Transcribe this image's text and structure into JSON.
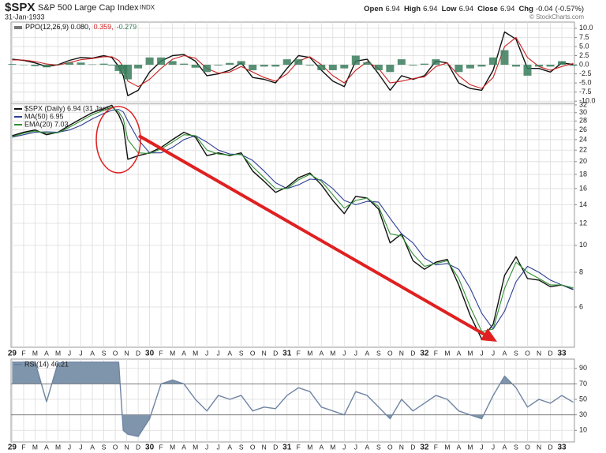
{
  "header": {
    "symbol": "$SPX",
    "name": "S&P 500 Large Cap Index",
    "exchange": "INDX",
    "date": "31-Jan-1933",
    "quote": [
      {
        "label": "Open",
        "value": 6.94
      },
      {
        "label": "High",
        "value": 6.94
      },
      {
        "label": "Low",
        "value": 6.94
      },
      {
        "label": "Close",
        "value": 6.94
      },
      {
        "label": "Chg",
        "value": -0.04
      }
    ],
    "change_pct": "(-0.57%)",
    "credit": "© StockCharts.com"
  },
  "chart_data": [
    {
      "type": "line",
      "log": true,
      "grid": true,
      "legend": "top-left",
      "x": [
        0,
        1,
        2,
        3,
        4,
        5,
        6,
        7,
        8,
        8.7,
        9.3,
        9.7,
        10.1,
        11,
        12,
        13,
        14,
        15,
        16,
        17,
        18,
        19,
        20,
        21,
        22,
        23,
        24,
        25,
        26,
        27,
        28,
        29,
        30,
        31,
        32,
        33,
        34,
        35,
        36,
        37,
        38,
        39,
        40,
        41,
        42,
        43,
        44,
        45,
        46,
        47,
        48,
        49
      ],
      "xlim": [
        -0.1,
        49.1
      ],
      "xticks": [
        {
          "value": 0,
          "label": "29"
        },
        {
          "value": 1,
          "label": "F"
        },
        {
          "value": 2,
          "label": "M"
        },
        {
          "value": 3,
          "label": "A"
        },
        {
          "value": 4,
          "label": "M"
        },
        {
          "value": 5,
          "label": "J"
        },
        {
          "value": 6,
          "label": "J"
        },
        {
          "value": 7,
          "label": "A"
        },
        {
          "value": 8,
          "label": "S"
        },
        {
          "value": 9,
          "label": "O"
        },
        {
          "value": 10,
          "label": "N"
        },
        {
          "value": 11,
          "label": "D"
        },
        {
          "value": 12,
          "label": "30"
        },
        {
          "value": 13,
          "label": "F"
        },
        {
          "value": 14,
          "label": "M"
        },
        {
          "value": 15,
          "label": "A"
        },
        {
          "value": 16,
          "label": "M"
        },
        {
          "value": 17,
          "label": "J"
        },
        {
          "value": 18,
          "label": "J"
        },
        {
          "value": 19,
          "label": "A"
        },
        {
          "value": 20,
          "label": "S"
        },
        {
          "value": 21,
          "label": "O"
        },
        {
          "value": 22,
          "label": "N"
        },
        {
          "value": 23,
          "label": "D"
        },
        {
          "value": 24,
          "label": "31"
        },
        {
          "value": 25,
          "label": "F"
        },
        {
          "value": 26,
          "label": "M"
        },
        {
          "value": 27,
          "label": "A"
        },
        {
          "value": 28,
          "label": "M"
        },
        {
          "value": 29,
          "label": "J"
        },
        {
          "value": 30,
          "label": "J"
        },
        {
          "value": 31,
          "label": "A"
        },
        {
          "value": 32,
          "label": "S"
        },
        {
          "value": 33,
          "label": "O"
        },
        {
          "value": 34,
          "label": "N"
        },
        {
          "value": 35,
          "label": "D"
        },
        {
          "value": 36,
          "label": "32"
        },
        {
          "value": 37,
          "label": "F"
        },
        {
          "value": 38,
          "label": "M"
        },
        {
          "value": 39,
          "label": "A"
        },
        {
          "value": 40,
          "label": "M"
        },
        {
          "value": 41,
          "label": "J"
        },
        {
          "value": 42,
          "label": "J"
        },
        {
          "value": 43,
          "label": "A"
        },
        {
          "value": 44,
          "label": "S"
        },
        {
          "value": 45,
          "label": "O"
        },
        {
          "value": 46,
          "label": "N"
        },
        {
          "value": 47,
          "label": "D"
        },
        {
          "value": 48,
          "label": "33"
        }
      ],
      "ylim": [
        4.3,
        32.4
      ],
      "yticks": [
        6,
        8,
        10,
        12,
        14,
        16,
        18,
        20,
        22,
        24,
        26,
        28,
        30,
        32
      ],
      "series": [
        {
          "name": "$SPX (Daily) 6.94 (31 Jan)",
          "color": "#111111",
          "values": [
            24.8,
            25.5,
            26,
            25,
            25.5,
            27,
            28.5,
            30,
            31,
            31.9,
            29.5,
            27,
            20.4,
            21,
            21.5,
            22.5,
            24,
            25.5,
            24.5,
            21,
            21.5,
            21,
            21.5,
            18.5,
            17,
            15.5,
            16.2,
            17.5,
            18.2,
            16.5,
            14.5,
            13,
            15,
            14.8,
            13.5,
            10.2,
            11,
            8.8,
            8.2,
            8.7,
            8.9,
            7.2,
            5.6,
            4.6,
            5.2,
            7.8,
            9.1,
            7.6,
            7.5,
            7.1,
            7.2,
            6.94
          ]
        },
        {
          "name": "MA(50) 6.95",
          "color": "#2c3f94",
          "values": [
            24.5,
            25,
            25.5,
            25.6,
            25.5,
            26,
            27,
            28.5,
            29.8,
            30.6,
            30.8,
            30.2,
            28,
            24,
            21.5,
            21.5,
            22.5,
            24,
            24.8,
            23.5,
            22,
            21.3,
            21.2,
            20.2,
            18.5,
            16.8,
            16,
            16.5,
            17.3,
            17.2,
            16,
            14.5,
            14,
            14.4,
            14.3,
            12.5,
            11,
            10.2,
            9,
            8.5,
            8.6,
            8.2,
            7,
            5.7,
            5,
            5.8,
            7.4,
            8.4,
            8,
            7.5,
            7.2,
            6.95
          ]
        },
        {
          "name": "EMA(20) 7.03",
          "color": "#2f8f2f",
          "values": [
            24.6,
            25.3,
            25.8,
            25.3,
            25.4,
            26.6,
            28,
            29.5,
            30.6,
            31.4,
            30.2,
            28.5,
            24,
            21.5,
            21.4,
            22.2,
            23.5,
            25,
            24.8,
            22,
            21.3,
            21.1,
            21.3,
            19.2,
            17.5,
            16,
            16,
            17.2,
            18,
            17,
            15.2,
            13.6,
            14.5,
            14.8,
            13.8,
            11,
            10.8,
            9.3,
            8.4,
            8.6,
            8.8,
            7.6,
            6,
            4.9,
            5,
            7,
            8.7,
            8,
            7.6,
            7.2,
            7.2,
            7.03
          ]
        }
      ]
    },
    {
      "type": "line",
      "grid": true,
      "legend": "top-left",
      "legend_inline": true,
      "ylim": [
        -10.6,
        11.7
      ],
      "yticks": [
        {
          "value": 10,
          "label": "10.0"
        },
        {
          "value": 7.5,
          "label": "7.5"
        },
        {
          "value": 5,
          "label": "5.0"
        },
        {
          "value": 2.5,
          "label": "2.5"
        },
        {
          "value": 0,
          "label": "0.0"
        },
        {
          "value": -2.5,
          "label": "-2.5"
        },
        {
          "value": -5,
          "label": "-5.0"
        },
        {
          "value": -7.5,
          "label": "-7.5"
        },
        {
          "value": -10,
          "label": "-10.0"
        }
      ],
      "series": [
        {
          "name": "PPO(12,26,9) 0.080,",
          "color": "#111111",
          "values": [
            1.5,
            1.2,
            0.5,
            -0.5,
            0,
            1.2,
            2,
            1.8,
            2.5,
            2,
            -0.5,
            -3,
            -8.5,
            -7,
            -2,
            1,
            2.5,
            2.8,
            1,
            -3,
            -2.5,
            -1.5,
            0.5,
            -3.5,
            -4,
            -5,
            -1,
            2.5,
            2,
            -1.5,
            -4.5,
            -6,
            1,
            1.5,
            -2.5,
            -7,
            -3,
            -4,
            -3,
            1,
            0.5,
            -5,
            -6.5,
            -7,
            -1.5,
            9,
            7,
            -1,
            -1,
            -2,
            0.5,
            0.08
          ]
        },
        {
          "name": "0.359,",
          "color": "#cc2222",
          "values": [
            1.3,
            1.3,
            0.9,
            0.2,
            -0.1,
            0.6,
            1.4,
            1.7,
            2.2,
            2.2,
            1.2,
            -0.5,
            -4.5,
            -6,
            -4,
            -1,
            1.5,
            2.5,
            1.8,
            -1,
            -2.3,
            -2,
            -0.5,
            -2,
            -3.5,
            -4.5,
            -2.5,
            1,
            2.2,
            0,
            -3,
            -5,
            -1.5,
            0.8,
            -1,
            -5,
            -4.5,
            -3.8,
            -3.3,
            -0.5,
            0.5,
            -3,
            -5.5,
            -6.5,
            -3.5,
            5,
            7.5,
            2,
            -0.5,
            -1.5,
            -0.5,
            0.359
          ]
        },
        {
          "name": "-0.279",
          "color": "#3a7d5c",
          "type": "bar",
          "values": [
            0.2,
            -0.1,
            -0.4,
            -0.7,
            0.1,
            0.6,
            0.6,
            0.1,
            0.3,
            -0.2,
            -1.7,
            -2.5,
            -4,
            -1,
            2,
            2,
            1,
            0.3,
            -0.8,
            -2,
            -0.2,
            0.5,
            1,
            -1.5,
            -0.5,
            -0.5,
            1.5,
            1.5,
            -0.2,
            -1.5,
            -1.5,
            -1,
            2.5,
            0.7,
            -1.5,
            -2,
            1.5,
            -0.2,
            0.3,
            1.5,
            0,
            -2,
            -1,
            -0.5,
            2,
            4,
            -0.5,
            -3,
            -0.5,
            -0.5,
            1,
            -0.279
          ]
        }
      ]
    },
    {
      "type": "line",
      "grid": true,
      "legend": "top-left",
      "reference_lines": [
        70,
        30
      ],
      "fill_color": "#7f95ab",
      "ylim": [
        -5,
        102
      ],
      "yticks": [
        90,
        70,
        50,
        30,
        10
      ],
      "series": [
        {
          "name": "RSI(14) 46.21",
          "color": "#6f84a3",
          "values": [
            98,
            98,
            98,
            47,
            97,
            98,
            98,
            98,
            98,
            98,
            98,
            10,
            5,
            2,
            25,
            70,
            75,
            70,
            50,
            35,
            55,
            50,
            55,
            35,
            40,
            38,
            55,
            65,
            60,
            40,
            35,
            30,
            60,
            55,
            40,
            25,
            50,
            35,
            45,
            55,
            50,
            35,
            30,
            25,
            55,
            80,
            65,
            40,
            50,
            45,
            55,
            46.21
          ]
        }
      ]
    }
  ]
}
